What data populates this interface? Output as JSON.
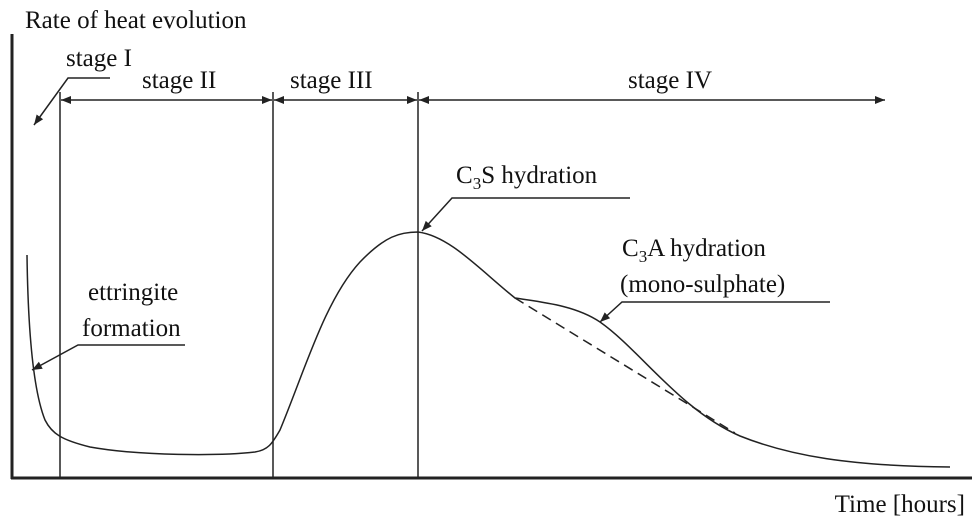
{
  "title": "Rate of heat evolution",
  "x_axis_label": "Time [hours]",
  "stages": [
    "stage I",
    "stage II",
    "stage III",
    "stage IV"
  ],
  "annotations": {
    "c3s": [
      "C",
      "3",
      "S hydration"
    ],
    "c3a": [
      "C",
      "3",
      "A hydration"
    ],
    "c3a_note": "(mono-sulphate)",
    "ettringite": [
      "ettringite",
      "formation"
    ]
  }
}
